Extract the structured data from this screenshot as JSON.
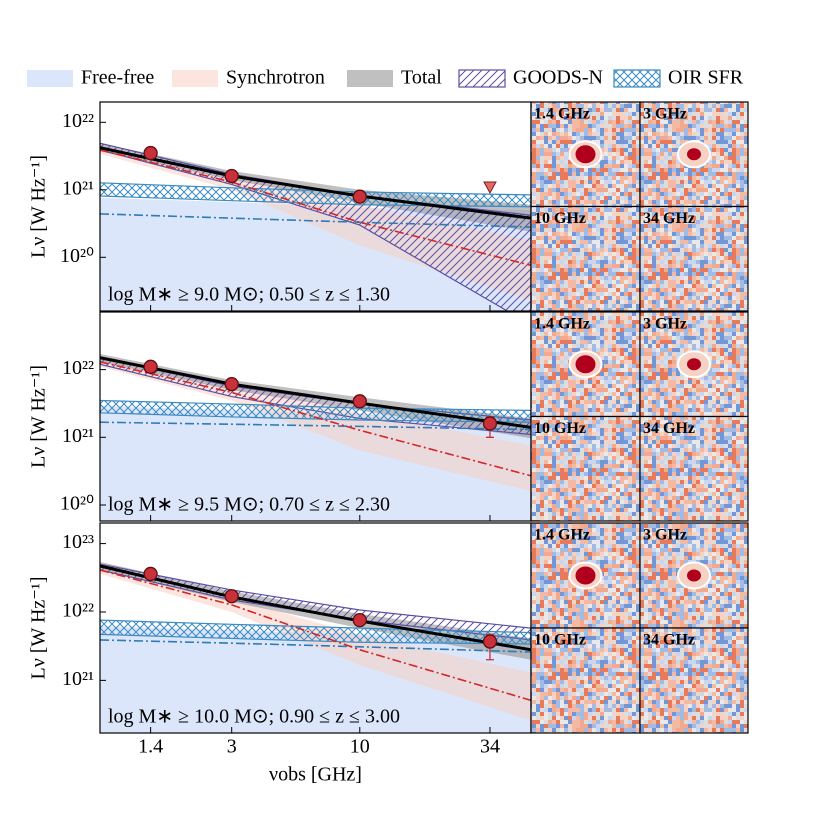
{
  "chart_data": [
    {
      "type": "line",
      "ylabel": "Lν [W Hz⁻¹]",
      "annotation": "log M∗ ≥ 9.0 M⊙;  0.50 ≤ z ≤ 1.30",
      "xlim": [
        0.87,
        50
      ],
      "xticks": [
        1.4,
        3,
        10,
        34
      ],
      "log_x": true,
      "log_y": true,
      "ylim": [
        1.6e+19,
        2e+22
      ],
      "yticks": [
        {
          "value": 1e+20,
          "label": "10²⁰"
        },
        {
          "value": 1e+21,
          "label": "10²¹"
        },
        {
          "value": 1e+22,
          "label": "10²²"
        }
      ],
      "x": [
        0.87,
        3,
        10,
        50
      ],
      "bands": [
        {
          "name": "Free-free",
          "style": "fill",
          "color": "#dce6fa",
          "upper": [
            7.6e+20,
            6.6e+20,
            5.4e+20,
            5e+20
          ]
        },
        {
          "name": "Synchrotron",
          "style": "fill",
          "color": "#f7cfc2",
          "upper": [
            4.5e+21,
            1.6e+21,
            6e+20,
            1.8e+20
          ],
          "lower": [
            3.4e+21,
            1e+21,
            1.5e+20,
            2.3e+19
          ]
        },
        {
          "name": "Total",
          "style": "fill",
          "color": "#8c8c8c",
          "upper": [
            4.9e+21,
            1.9e+21,
            1e+21,
            6e+20
          ],
          "lower": [
            3.7e+21,
            1.4e+21,
            6.4e+20,
            2.4e+20
          ]
        },
        {
          "name": "GOODS-N",
          "style": "hatch",
          "color": "#5a4fa3",
          "upper": [
            4.9e+21,
            1.7e+21,
            8.1e+20,
            4.2e+20
          ],
          "lower": [
            3.9e+21,
            1.2e+21,
            3e+20,
            1e+19
          ]
        },
        {
          "name": "OIR SFR",
          "style": "cross",
          "color": "#3b8bc2",
          "upper": [
            1.27e+21,
            1.07e+21,
            9.3e+20,
            8.4e+20
          ],
          "lower": [
            8.1e+20,
            6.9e+20,
            6e+20,
            5.6e+20
          ]
        }
      ],
      "lines": [
        {
          "name": "Free-free",
          "style": "dashdot",
          "color": "#2f7bb5",
          "values": [
            4.4e+20,
            3.8e+20,
            3.3e+20,
            2.8e+20
          ]
        },
        {
          "name": "Synchrotron",
          "style": "dashdot",
          "color": "#d62728",
          "values": [
            3.9e+21,
            1.3e+21,
            3.3e+20,
            7.6e+19
          ]
        },
        {
          "name": "Total",
          "style": "solid",
          "color": "#000000",
          "values": [
            4.2e+21,
            1.6e+21,
            8.1e+20,
            3.8e+20
          ]
        }
      ],
      "points": {
        "x": [
          1.4,
          3,
          10,
          34
        ],
        "values": [
          3.5e+21,
          1.6e+21,
          7.9e+20,
          1.1e+21
        ],
        "upper_limit": [
          false,
          false,
          false,
          true
        ],
        "color": "#c9303a"
      },
      "stamps": [
        "1.4 GHz",
        "3 GHz",
        "10 GHz",
        "34 GHz"
      ]
    },
    {
      "type": "line",
      "ylabel": "Lν [W Hz⁻¹]",
      "annotation": "log M∗ ≥ 9.5 M⊙;  0.70 ≤ z ≤ 2.30",
      "xlim": [
        0.87,
        50
      ],
      "xticks": [
        1.4,
        3,
        10,
        34
      ],
      "log_x": true,
      "log_y": true,
      "ylim": [
        5.8e+19,
        7.1e+22
      ],
      "yticks": [
        {
          "value": 1e+20,
          "label": "10²⁰"
        },
        {
          "value": 1e+21,
          "label": "10²¹"
        },
        {
          "value": 1e+22,
          "label": "10²²"
        }
      ],
      "x": [
        0.87,
        3,
        10,
        50
      ],
      "bands": [
        {
          "name": "Free-free",
          "style": "fill",
          "color": "#dce6fa",
          "upper": [
            2.9e+21,
            2.5e+21,
            2.2e+21,
            1.9e+21
          ]
        },
        {
          "name": "Synchrotron",
          "style": "fill",
          "color": "#f7cfc2",
          "upper": [
            1.6e+22,
            6.5e+21,
            2.3e+21,
            7.6e+20
          ],
          "lower": [
            1.1e+22,
            3.5e+21,
            6.4e+20,
            1.6e+20
          ]
        },
        {
          "name": "Total",
          "style": "fill",
          "color": "#8c8c8c",
          "upper": [
            1.7e+22,
            7e+21,
            3.9e+21,
            1.9e+21
          ],
          "lower": [
            1.3e+22,
            5e+21,
            2.5e+21,
            9.7e+20
          ]
        },
        {
          "name": "GOODS-N",
          "style": "hatch",
          "color": "#5a4fa3",
          "upper": [
            1.5e+22,
            5.7e+21,
            3.1e+21,
            1.8e+21
          ],
          "lower": [
            1.2e+22,
            4e+21,
            1.9e+21,
            1.1e+21
          ]
        },
        {
          "name": "OIR SFR",
          "style": "cross",
          "color": "#3b8bc2",
          "upper": [
            3.5e+21,
            3.1e+21,
            2.7e+21,
            2.5e+21
          ],
          "lower": [
            2.3e+21,
            2e+21,
            1.8e+21,
            1.67e+21
          ]
        }
      ],
      "lines": [
        {
          "name": "Free-free",
          "style": "dashdot",
          "color": "#2f7bb5",
          "values": [
            1.67e+21,
            1.56e+21,
            1.45e+21,
            1.3e+21
          ]
        },
        {
          "name": "Synchrotron",
          "style": "dashdot",
          "color": "#d62728",
          "values": [
            1.3e+22,
            4.6e+21,
            1.27e+21,
            2.7e+20
          ]
        },
        {
          "name": "Total",
          "style": "solid",
          "color": "#000000",
          "values": [
            1.5e+22,
            6.1e+21,
            3.2e+21,
            1.4e+21
          ]
        }
      ],
      "points": {
        "x": [
          1.4,
          3,
          10,
          34
        ],
        "values": [
          1.1e+22,
          6.1e+21,
          3.4e+21,
          1.6e+21
        ],
        "upper_limit": [
          false,
          false,
          false,
          false
        ],
        "err_low": [
          null,
          null,
          null,
          1e+21
        ],
        "err_high": [
          null,
          null,
          null,
          2e+21
        ],
        "color": "#c9303a"
      },
      "stamps": [
        "1.4 GHz",
        "3 GHz",
        "10 GHz",
        "34 GHz"
      ]
    },
    {
      "type": "line",
      "ylabel": "Lν [W Hz⁻¹]",
      "xlabel": "νobs [GHz]",
      "annotation": "log M∗ ≥ 10.0 M⊙;  0.90 ≤ z ≤ 3.00",
      "xlim": [
        0.87,
        50
      ],
      "xticks": [
        1.4,
        3,
        10,
        34
      ],
      "log_x": true,
      "log_y": true,
      "ylim": [
        1.7e+20,
        2e+23
      ],
      "yticks": [
        {
          "value": 1e+21,
          "label": "10²¹"
        },
        {
          "value": 1e+22,
          "label": "10²²"
        },
        {
          "value": 1e+23,
          "label": "10²³"
        }
      ],
      "x": [
        0.87,
        3,
        10,
        50
      ],
      "bands": [
        {
          "name": "Free-free",
          "style": "fill",
          "color": "#dce6fa",
          "upper": [
            6.2e+21,
            5.4e+21,
            4.7e+21,
            3.9e+21
          ]
        },
        {
          "name": "Synchrotron",
          "style": "fill",
          "color": "#f7cfc2",
          "upper": [
            4.7e+22,
            1.6e+22,
            4.6e+21,
            1.3e+21
          ],
          "lower": [
            3.6e+22,
            1e+22,
            1.66e+21,
            2.6e+20
          ]
        },
        {
          "name": "Total",
          "style": "fill",
          "color": "#8c8c8c",
          "upper": [
            5.4e+22,
            2e+22,
            9.4e+21,
            4.1e+21
          ],
          "lower": [
            4.1e+22,
            1.4e+22,
            5.8e+21,
            2e+21
          ]
        },
        {
          "name": "GOODS-N",
          "style": "hatch",
          "color": "#5a4fa3",
          "upper": [
            5e+22,
            2.1e+22,
            1.07e+22,
            5.8e+21
          ],
          "lower": [
            4.1e+22,
            1.5e+22,
            7.6e+21,
            3.9e+21
          ]
        },
        {
          "name": "OIR SFR",
          "style": "cross",
          "color": "#3b8bc2",
          "upper": [
            7.6e+21,
            6.6e+21,
            5.8e+21,
            5e+21
          ],
          "lower": [
            4.7e+21,
            4.1e+21,
            3.6e+21,
            3.4e+21
          ]
        }
      ],
      "lines": [
        {
          "name": "Free-free",
          "style": "dashdot",
          "color": "#2f7bb5",
          "values": [
            3.9e+21,
            3.5e+21,
            3.1e+21,
            2.6e+21
          ]
        },
        {
          "name": "Synchrotron",
          "style": "dashdot",
          "color": "#d62728",
          "values": [
            4.1e+22,
            1.27e+22,
            2.8e+21,
            5.1e+20
          ]
        },
        {
          "name": "Total",
          "style": "solid",
          "color": "#000000",
          "values": [
            4.7e+22,
            1.66e+22,
            7.4e+21,
            2.8e+21
          ]
        }
      ],
      "points": {
        "x": [
          1.4,
          3,
          10,
          34
        ],
        "values": [
          3.6e+22,
          1.7e+22,
          7.6e+21,
          3.7e+21
        ],
        "upper_limit": [
          false,
          false,
          false,
          false
        ],
        "err_low": [
          null,
          null,
          null,
          2e+21
        ],
        "err_high": [
          null,
          null,
          null,
          4.7e+21
        ],
        "color": "#c9303a"
      },
      "stamps": [
        "1.4 GHz",
        "3 GHz",
        "10 GHz",
        "34 GHz"
      ]
    }
  ]
}
